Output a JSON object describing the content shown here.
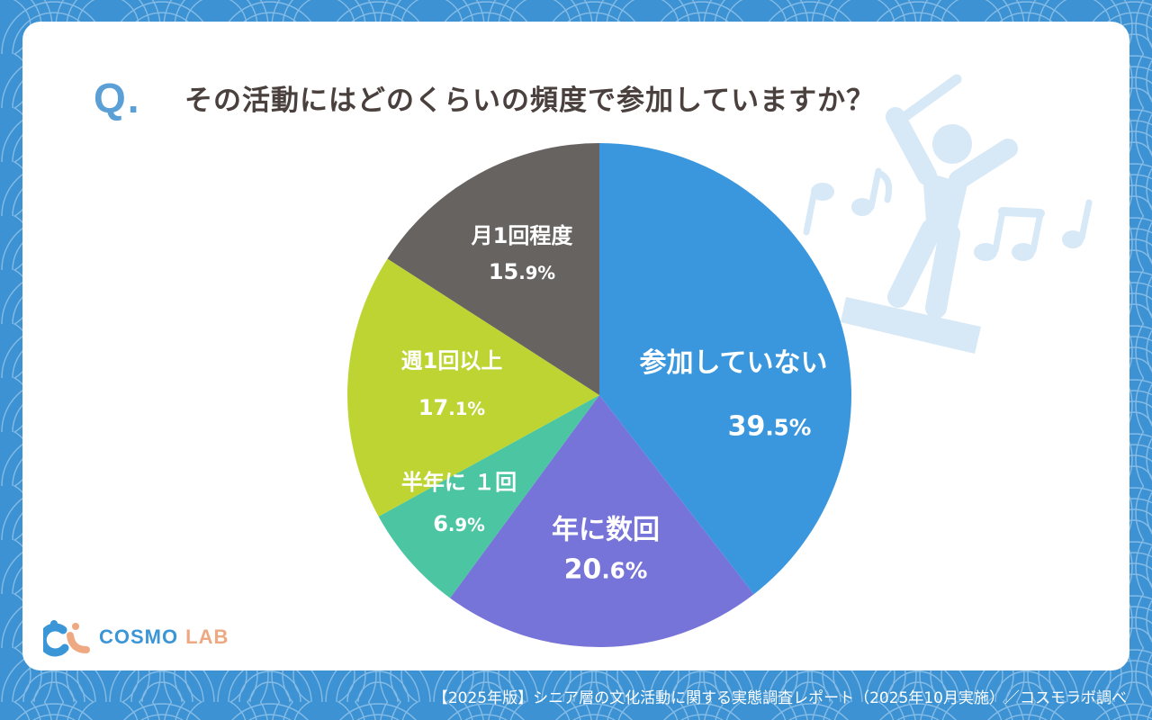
{
  "header": {
    "q_mark": "Q.",
    "question": "その活動にはどのくらいの頻度で参加していますか？"
  },
  "colors": {
    "background": "#3c92d2",
    "card": "#ffffff",
    "q_mark": "#5a9fd6",
    "question_text": "#4a403d",
    "illustration": "#d7e8f6"
  },
  "chart_data": {
    "type": "pie",
    "title": "その活動にはどのくらいの頻度で参加していますか？",
    "start_angle": "12 o'clock",
    "direction": "clockwise",
    "categories": [
      "参加していない",
      "年に数回",
      "半年に１回",
      "週1回以上",
      "月1回程度"
    ],
    "values": [
      39.5,
      20.6,
      6.9,
      17.1,
      15.9
    ],
    "unit": "%",
    "colors": [
      "#3a97dd",
      "#7674d8",
      "#4cc6a2",
      "#bdd432",
      "#676361"
    ],
    "legend": "none (labels inside slices)"
  },
  "labels": [
    {
      "name": "参加していない",
      "int": "39",
      "dec": ".5%"
    },
    {
      "name": "年に数回",
      "int": "20",
      "dec": ".6%"
    },
    {
      "name": "半年に １回",
      "int": "6",
      "dec": ".9%"
    },
    {
      "name": "週1回以上",
      "int": "17",
      "dec": ".1%"
    },
    {
      "name": "月1回程度",
      "int": "15",
      "dec": ".9%"
    }
  ],
  "logo": {
    "part1": "COSMO",
    "part2": "LAB"
  },
  "footer": {
    "source": "【2025年版】シニア層の文化活動に関する実態調査レポート（2025年10月実施）／コスモラボ調べ"
  }
}
